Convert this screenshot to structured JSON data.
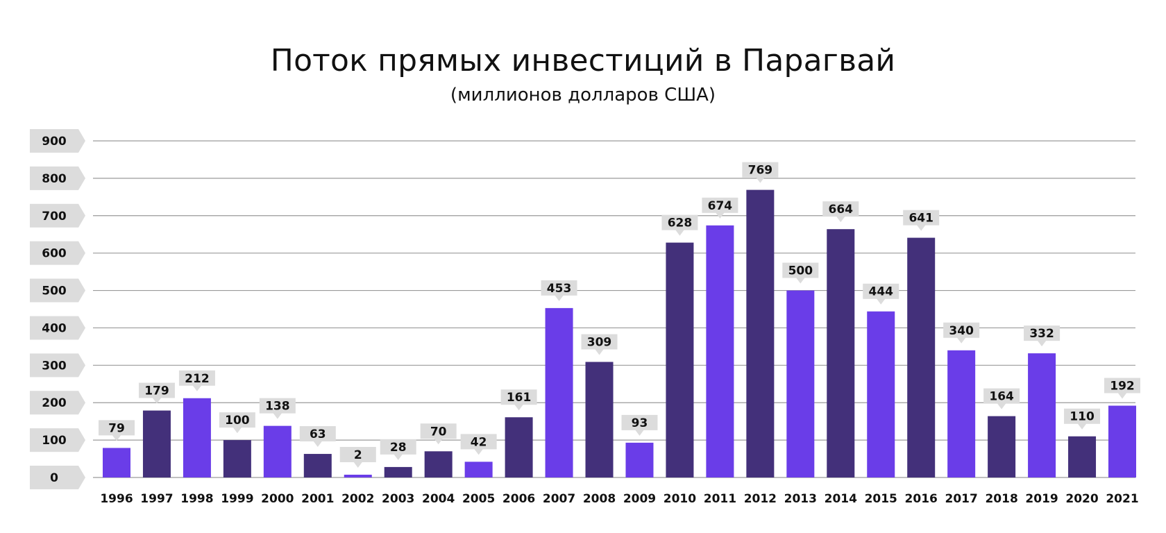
{
  "chart_data": {
    "type": "bar",
    "title": "Поток прямых инвестиций в Парагвай",
    "subtitle": "(миллионов долларов США)",
    "xlabel": "",
    "ylabel": "",
    "ylim": [
      0,
      900
    ],
    "yticks": [
      0,
      100,
      200,
      300,
      400,
      500,
      600,
      700,
      800,
      900
    ],
    "grid": true,
    "categories": [
      "1996",
      "1997",
      "1998",
      "1999",
      "2000",
      "2001",
      "2002",
      "2003",
      "2004",
      "2005",
      "2006",
      "2007",
      "2008",
      "2009",
      "2010",
      "2011",
      "2012",
      "2013",
      "2014",
      "2015",
      "2016",
      "2017",
      "2018",
      "2019",
      "2020",
      "2021"
    ],
    "values": [
      79,
      179,
      212,
      100,
      138,
      63,
      2,
      28,
      70,
      42,
      161,
      453,
      309,
      93,
      628,
      674,
      769,
      500,
      664,
      444,
      641,
      340,
      164,
      332,
      110,
      192
    ],
    "bar_colors": [
      "#6a3de8",
      "#43307a",
      "#6a3de8",
      "#43307a",
      "#6a3de8",
      "#43307a",
      "#6a3de8",
      "#43307a",
      "#43307a",
      "#6a3de8",
      "#43307a",
      "#6a3de8",
      "#43307a",
      "#6a3de8",
      "#43307a",
      "#6a3de8",
      "#43307a",
      "#6a3de8",
      "#43307a",
      "#6a3de8",
      "#43307a",
      "#6a3de8",
      "#43307a",
      "#6a3de8",
      "#43307a",
      "#6a3de8"
    ],
    "colors": {
      "light": "#6a3de8",
      "dark": "#43307a",
      "label_bg": "#dcdcdc",
      "grid": "#9a9a9a"
    }
  }
}
